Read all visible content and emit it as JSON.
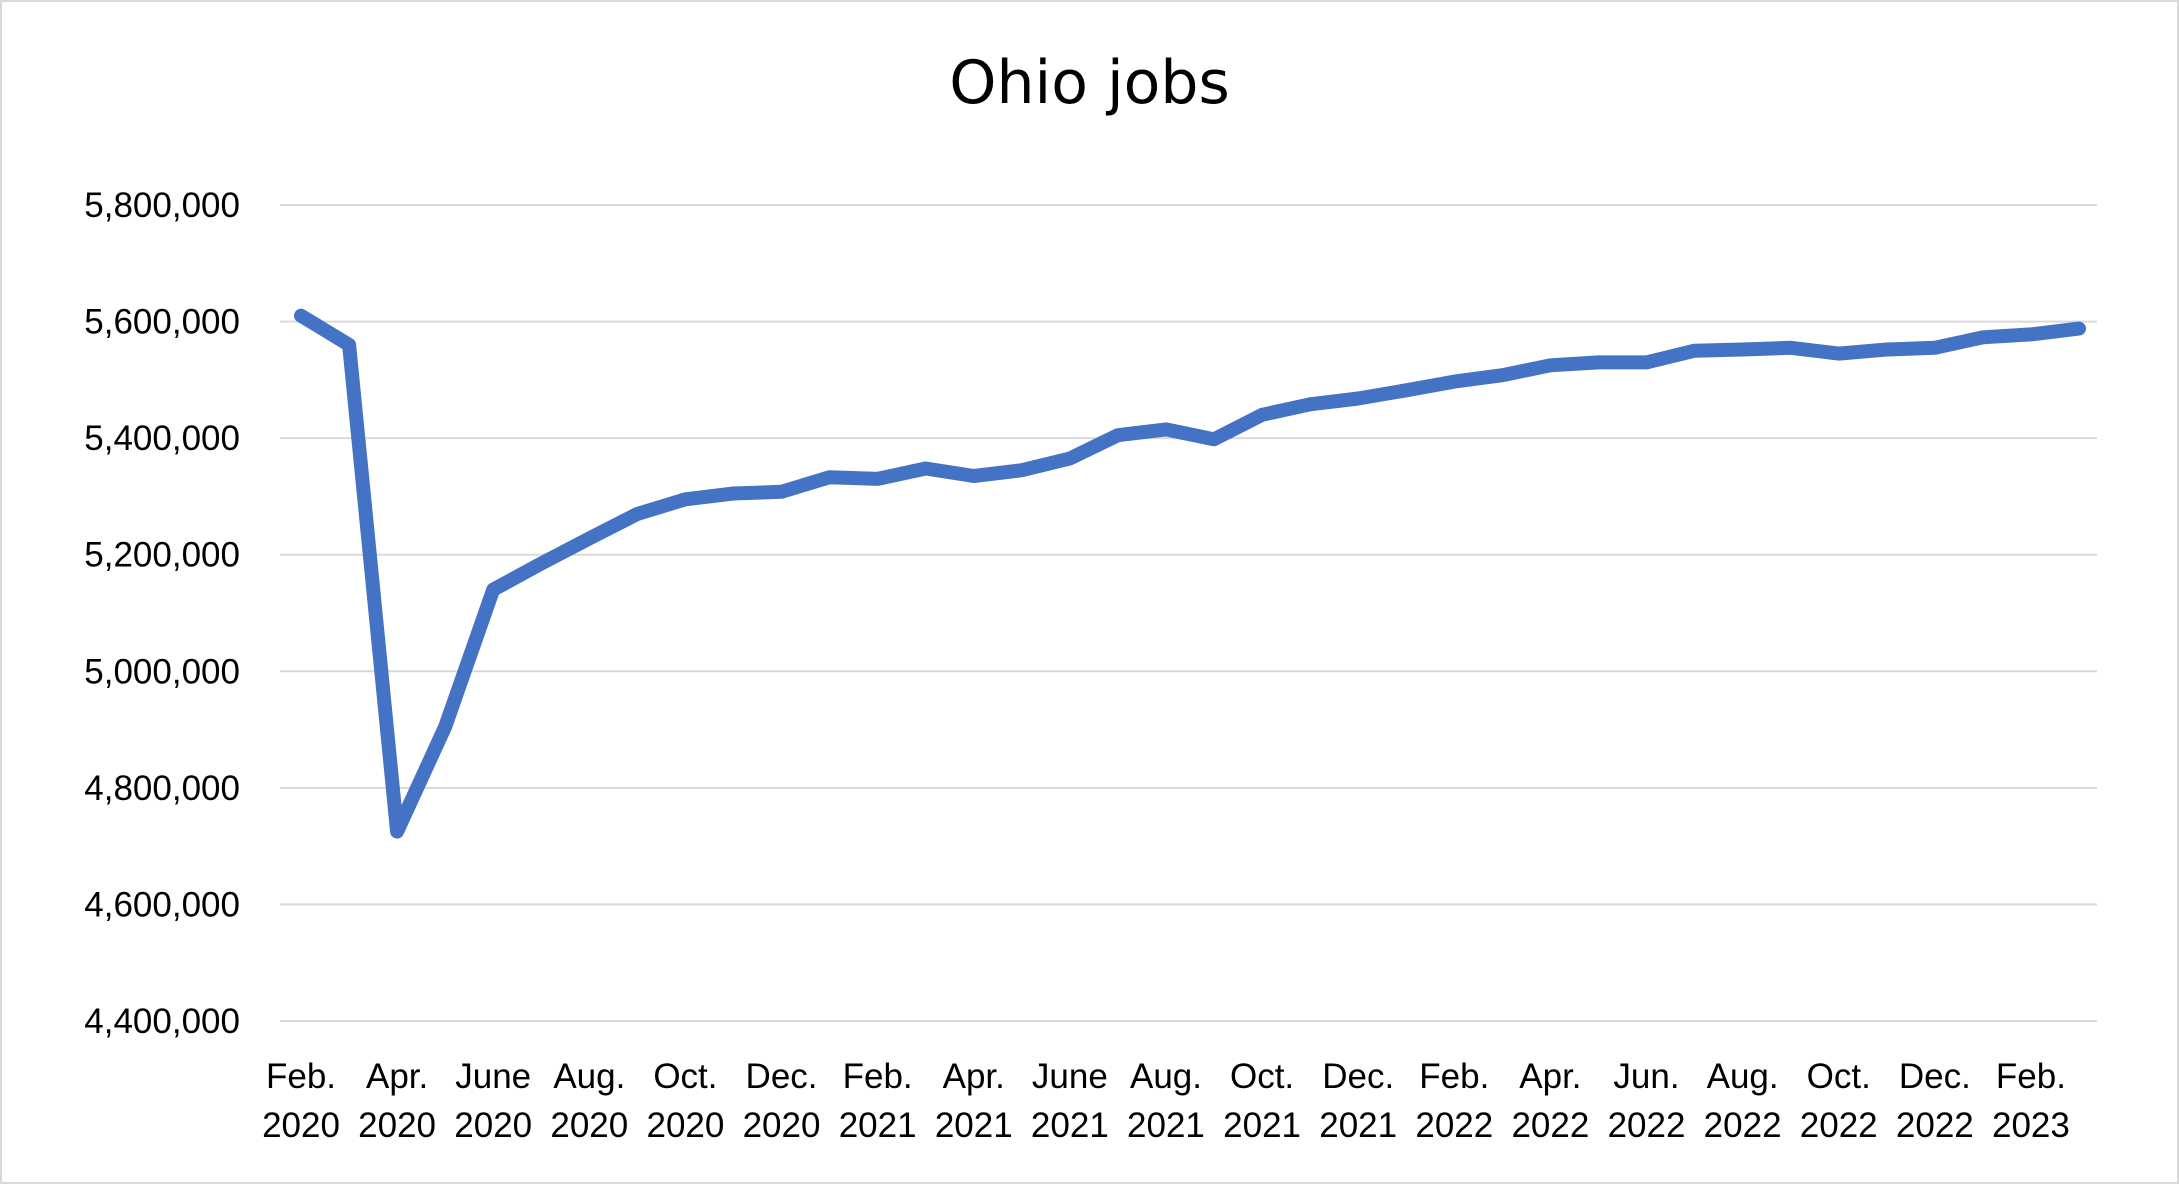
{
  "chart_data": {
    "type": "line",
    "title": "Ohio jobs",
    "xlabel": "",
    "ylabel": "",
    "ylim": [
      4400000,
      5800000
    ],
    "yticks": [
      4400000,
      4600000,
      4800000,
      5000000,
      5200000,
      5400000,
      5600000,
      5800000
    ],
    "ytick_labels": [
      "4,400,000",
      "4,600,000",
      "4,800,000",
      "5,000,000",
      "5,200,000",
      "5,400,000",
      "5,600,000",
      "5,800,000"
    ],
    "grid": true,
    "legend": "none",
    "line_color": "#4472c4",
    "grid_color": "#d9d9d9",
    "xtick_labels": [
      [
        "Feb.",
        "2020"
      ],
      [
        "Apr.",
        "2020"
      ],
      [
        "June",
        "2020"
      ],
      [
        "Aug.",
        "2020"
      ],
      [
        "Oct.",
        "2020"
      ],
      [
        "Dec.",
        "2020"
      ],
      [
        "Feb.",
        "2021"
      ],
      [
        "Apr.",
        "2021"
      ],
      [
        "June",
        "2021"
      ],
      [
        "Aug.",
        "2021"
      ],
      [
        "Oct.",
        "2021"
      ],
      [
        "Dec.",
        "2021"
      ],
      [
        "Feb.",
        "2022"
      ],
      [
        "Apr.",
        "2022"
      ],
      [
        "Jun.",
        "2022"
      ],
      [
        "Aug.",
        "2022"
      ],
      [
        "Oct.",
        "2022"
      ],
      [
        "Dec.",
        "2022"
      ],
      [
        "Feb.",
        "2023"
      ]
    ],
    "x": [
      "2020-02",
      "2020-03",
      "2020-04",
      "2020-05",
      "2020-06",
      "2020-07",
      "2020-08",
      "2020-09",
      "2020-10",
      "2020-11",
      "2020-12",
      "2021-01",
      "2021-02",
      "2021-03",
      "2021-04",
      "2021-05",
      "2021-06",
      "2021-07",
      "2021-08",
      "2021-09",
      "2021-10",
      "2021-11",
      "2021-12",
      "2022-01",
      "2022-02",
      "2022-03",
      "2022-04",
      "2022-05",
      "2022-06",
      "2022-07",
      "2022-08",
      "2022-09",
      "2022-10",
      "2022-11",
      "2022-12",
      "2023-01",
      "2023-02",
      "2023-03"
    ],
    "series": [
      {
        "values": [
          5610000,
          5560000,
          4725000,
          4905000,
          5140000,
          5185000,
          5228000,
          5270000,
          5295000,
          5305000,
          5308000,
          5333000,
          5330000,
          5348000,
          5335000,
          5345000,
          5365000,
          5405000,
          5415000,
          5398000,
          5440000,
          5458000,
          5468000,
          5482000,
          5497000,
          5508000,
          5525000,
          5530000,
          5530000,
          5550000,
          5552000,
          5555000,
          5545000,
          5552000,
          5555000,
          5573000,
          5578000,
          5588000
        ]
      }
    ]
  }
}
